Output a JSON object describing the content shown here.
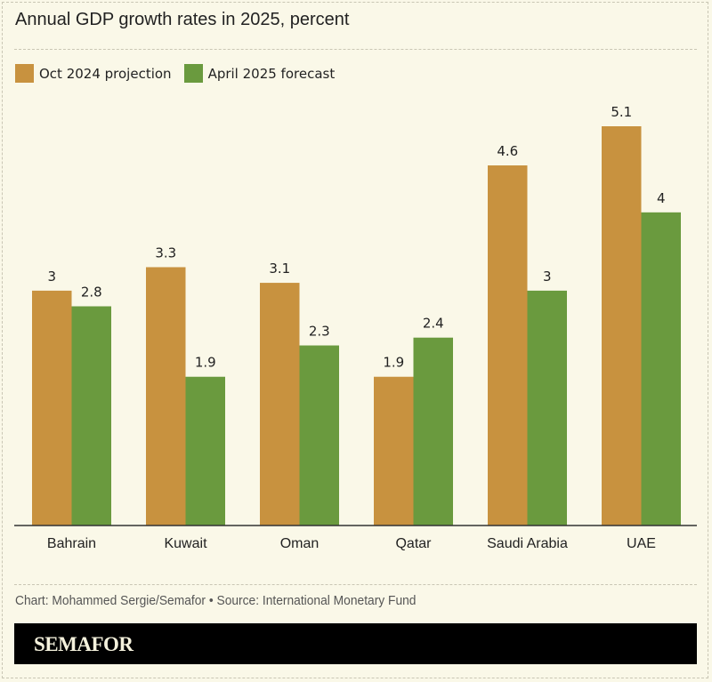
{
  "chart_data": {
    "type": "bar",
    "title": "Annual GDP growth rates in 2025, percent",
    "categories": [
      "Bahrain",
      "Kuwait",
      "Oman",
      "Qatar",
      "Saudi Arabia",
      "UAE"
    ],
    "series": [
      {
        "name": "Oct 2024 projection",
        "color": "#c8923f",
        "values": [
          3,
          3.3,
          3.1,
          1.9,
          4.6,
          5.1
        ],
        "labels": [
          "3",
          "3.3",
          "3.1",
          "1.9",
          "4.6",
          "5.1"
        ]
      },
      {
        "name": "April 2025 forecast",
        "color": "#6a9a3e",
        "values": [
          2.8,
          1.9,
          2.3,
          2.4,
          3,
          4
        ],
        "labels": [
          "2.8",
          "1.9",
          "2.3",
          "2.4",
          "3",
          "4"
        ]
      }
    ],
    "xlabel": "",
    "ylabel": "",
    "ylim": [
      0,
      5.1
    ],
    "grid": false,
    "legend": "top-left"
  },
  "footer": {
    "source": "Chart: Mohammed Sergie/Semafor • Source: International Monetary Fund",
    "brand": "SEMAFOR"
  }
}
